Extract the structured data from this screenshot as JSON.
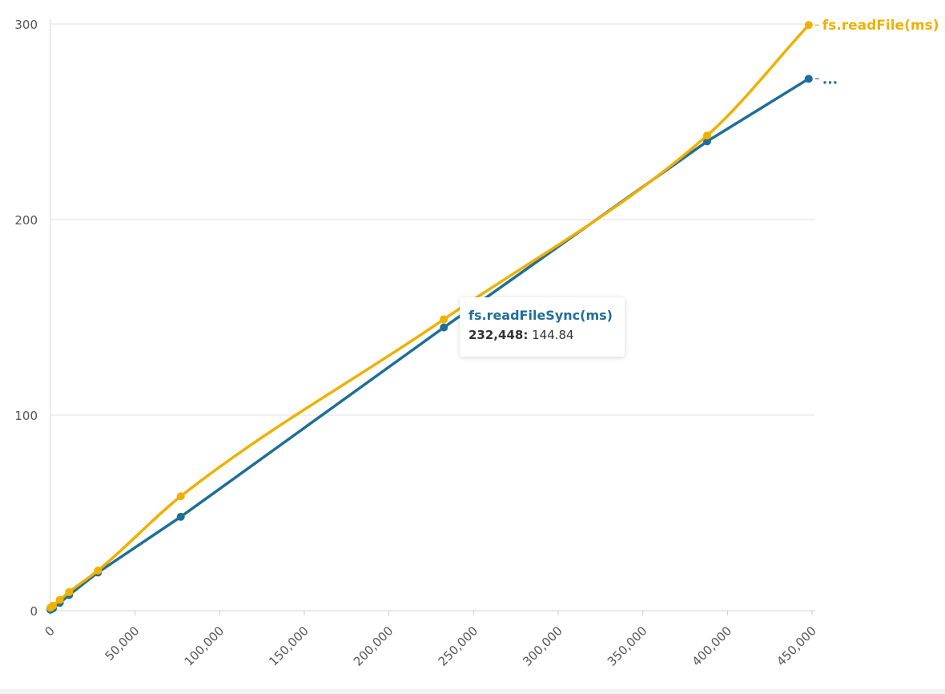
{
  "chart_data": {
    "type": "line",
    "title": "",
    "xlabel": "",
    "ylabel": "",
    "xlim": [
      0,
      450000
    ],
    "ylim": [
      0,
      300
    ],
    "x_ticks": [
      "0",
      "50,000",
      "100,000",
      "150,000",
      "200,000",
      "250,000",
      "300,000",
      "350,000",
      "400,000",
      "450,000"
    ],
    "y_ticks": [
      "0",
      "100",
      "200",
      "300"
    ],
    "grid": "horizontal",
    "legend": "end-of-line labels",
    "series": [
      {
        "name": "fs.readFileSync(ms)",
        "end_label": "...",
        "color": "#1f6e99",
        "smooth": false,
        "points": [
          {
            "x": 0,
            "y": 0.5
          },
          {
            "x": 1500,
            "y": 1.2
          },
          {
            "x": 5500,
            "y": 4.0
          },
          {
            "x": 11000,
            "y": 8.0
          },
          {
            "x": 28000,
            "y": 19.5
          },
          {
            "x": 77000,
            "y": 48.0
          },
          {
            "x": 232448,
            "y": 144.84
          },
          {
            "x": 388000,
            "y": 240.0
          },
          {
            "x": 448000,
            "y": 272.0
          }
        ]
      },
      {
        "name": "fs.readFile(ms)",
        "end_label": "fs.readFile(ms)",
        "color": "#f0b000",
        "smooth": true,
        "points": [
          {
            "x": 0,
            "y": 1.5
          },
          {
            "x": 1500,
            "y": 2.5
          },
          {
            "x": 5500,
            "y": 5.5
          },
          {
            "x": 11000,
            "y": 9.5
          },
          {
            "x": 28000,
            "y": 20.5
          },
          {
            "x": 77000,
            "y": 58.5
          },
          {
            "x": 232448,
            "y": 149.0
          },
          {
            "x": 388000,
            "y": 243.0
          },
          {
            "x": 448000,
            "y": 299.5
          }
        ]
      }
    ],
    "tooltip": {
      "series_name": "fs.readFileSync(ms)",
      "x_label": "232,448:",
      "y_value": "144.84"
    }
  }
}
